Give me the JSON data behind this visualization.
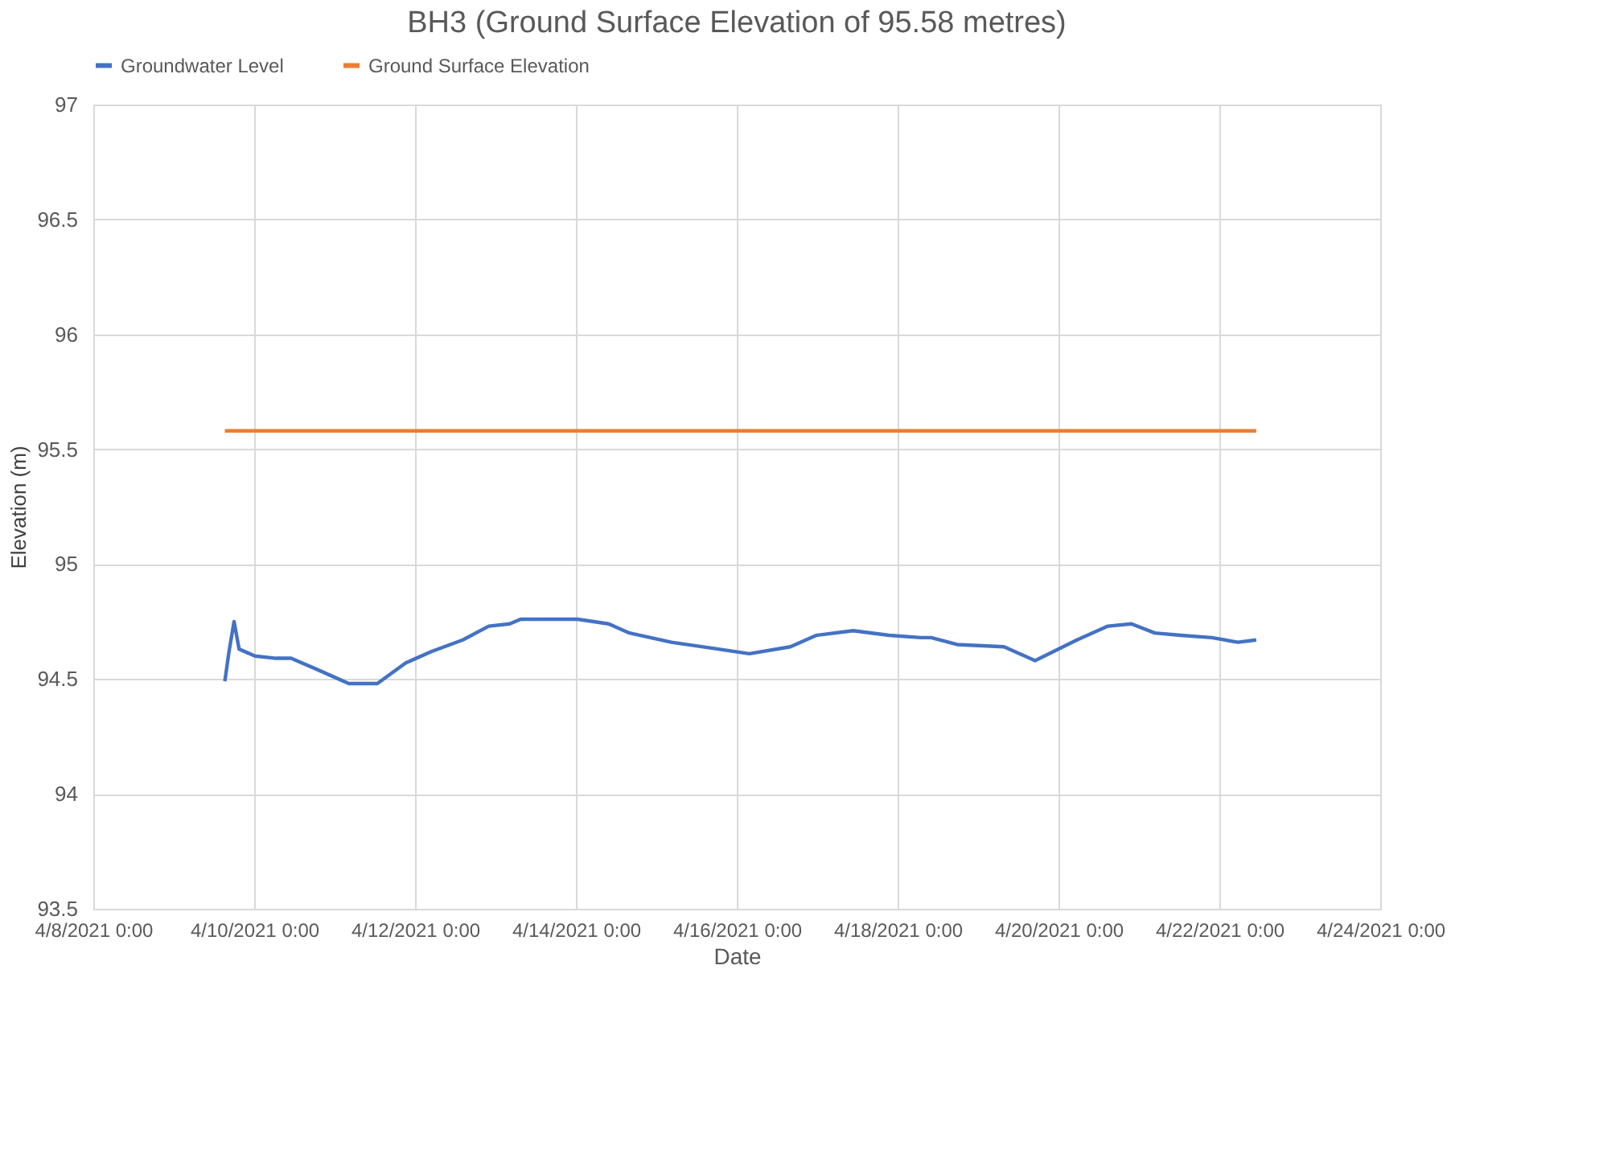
{
  "chart_data": {
    "type": "line",
    "title": "BH3 (Ground Surface Elevation of 95.58 metres)",
    "xlabel": "Date",
    "ylabel": "Elevation (m)",
    "xlim": [
      "2021-04-08T00:00",
      "2021-04-24T00:00"
    ],
    "xticks": [
      {
        "value": "2021-04-08T00:00",
        "label": "4/8/2021 0:00"
      },
      {
        "value": "2021-04-10T00:00",
        "label": "4/10/2021 0:00"
      },
      {
        "value": "2021-04-12T00:00",
        "label": "4/12/2021 0:00"
      },
      {
        "value": "2021-04-14T00:00",
        "label": "4/14/2021 0:00"
      },
      {
        "value": "2021-04-16T00:00",
        "label": "4/16/2021 0:00"
      },
      {
        "value": "2021-04-18T00:00",
        "label": "4/18/2021 0:00"
      },
      {
        "value": "2021-04-20T00:00",
        "label": "4/20/2021 0:00"
      },
      {
        "value": "2021-04-22T00:00",
        "label": "4/22/2021 0:00"
      },
      {
        "value": "2021-04-24T00:00",
        "label": "4/24/2021 0:00"
      }
    ],
    "ylim": [
      93.5,
      97
    ],
    "yticks": [
      93.5,
      94,
      94.5,
      95,
      95.5,
      96,
      96.5,
      97
    ],
    "grid": true,
    "legend": "top",
    "marker": "none",
    "line_style": "solid",
    "series": [
      {
        "name": "Groundwater Level",
        "color": "#4472c4",
        "x": [
          "2021-04-09T15:15",
          "2021-04-09T16:30",
          "2021-04-09T18:00",
          "2021-04-09T19:30",
          "2021-04-10T00:15",
          "2021-04-10T06:30",
          "2021-04-10T11:00",
          "2021-04-10T19:00",
          "2021-04-11T04:15",
          "2021-04-11T12:45",
          "2021-04-11T21:15",
          "2021-04-12T05:00",
          "2021-04-12T14:15",
          "2021-04-12T22:00",
          "2021-04-13T04:15",
          "2021-04-13T07:30",
          "2021-04-13T16:45",
          "2021-04-14T00:30",
          "2021-04-14T09:45",
          "2021-04-14T16:00",
          "2021-04-15T04:30",
          "2021-04-15T18:30",
          "2021-04-16T03:45",
          "2021-04-16T16:00",
          "2021-04-16T23:45",
          "2021-04-17T10:45",
          "2021-04-17T21:30",
          "2021-04-18T07:00",
          "2021-04-18T10:00",
          "2021-04-18T17:45",
          "2021-04-19T07:45",
          "2021-04-19T17:00",
          "2021-04-20T05:30",
          "2021-04-20T14:45",
          "2021-04-20T21:45",
          "2021-04-21T04:45",
          "2021-04-21T12:30",
          "2021-04-21T21:45",
          "2021-04-22T05:30",
          "2021-04-22T11:00"
        ],
        "values": [
          94.49,
          94.62,
          94.75,
          94.63,
          94.6,
          94.59,
          94.59,
          94.54,
          94.48,
          94.48,
          94.57,
          94.62,
          94.67,
          94.73,
          94.74,
          94.76,
          94.76,
          94.76,
          94.74,
          94.7,
          94.66,
          94.63,
          94.61,
          94.64,
          94.69,
          94.71,
          94.69,
          94.68,
          94.68,
          94.65,
          94.64,
          94.58,
          94.67,
          94.73,
          94.74,
          94.7,
          94.69,
          94.68,
          94.66,
          94.67
        ]
      },
      {
        "name": "Ground Surface Elevation",
        "color": "#ed7d31",
        "x": [
          "2021-04-09T15:15",
          "2021-04-22T11:00"
        ],
        "values": [
          95.58,
          95.58
        ]
      }
    ]
  }
}
